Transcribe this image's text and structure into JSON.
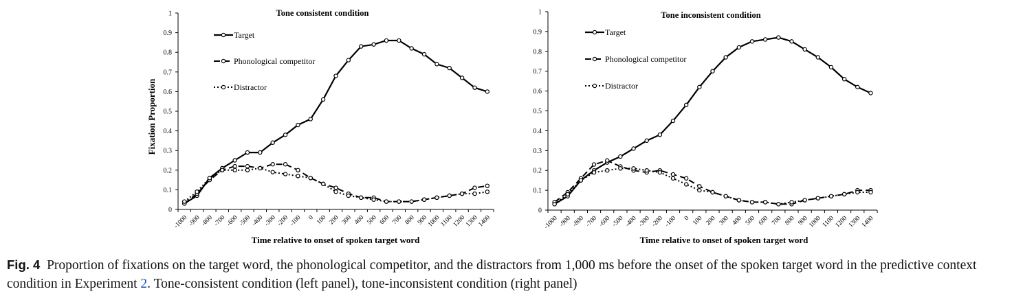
{
  "caption": {
    "label": "Fig. 4",
    "text_before": "Proportion of fixations on the target word, the phonological competitor, and the distractors from 1,000 ms before the onset of the spoken target word in the predictive context condition in Experiment ",
    "link": "2",
    "text_after": ". Tone-consistent condition (left panel), tone-inconsistent condition (right panel)"
  },
  "chart_data": [
    {
      "type": "line",
      "title": "Tone consistent condition",
      "xlabel": "Time relative to onset of spoken target word",
      "ylabel": "Fixation Proportion",
      "ylim": [
        0,
        1
      ],
      "yticks": [
        "0",
        "0.1",
        "0.2",
        "0.3",
        "0.4",
        "0.5",
        "0.6",
        "0.7",
        "0.8",
        "0.9",
        "1"
      ],
      "categories": [
        "-1000",
        "-900",
        "-800",
        "-700",
        "-600",
        "-500",
        "-400",
        "-300",
        "-200",
        "-100",
        "0",
        "100",
        "200",
        "300",
        "400",
        "500",
        "600",
        "700",
        "800",
        "900",
        "1000",
        "1100",
        "1200",
        "1300",
        "1400"
      ],
      "legend_position": "top-left",
      "series": [
        {
          "name": "Target",
          "style": "solid",
          "values": [
            0.03,
            0.07,
            0.16,
            0.21,
            0.25,
            0.29,
            0.29,
            0.34,
            0.38,
            0.43,
            0.46,
            0.56,
            0.68,
            0.76,
            0.83,
            0.84,
            0.86,
            0.86,
            0.82,
            0.79,
            0.74,
            0.72,
            0.67,
            0.62,
            0.6
          ]
        },
        {
          "name": "Phonological competitor",
          "style": "dashed",
          "values": [
            0.03,
            0.08,
            0.15,
            0.2,
            0.22,
            0.22,
            0.21,
            0.23,
            0.23,
            0.2,
            0.16,
            0.13,
            0.11,
            0.08,
            0.06,
            0.06,
            0.04,
            0.04,
            0.04,
            0.05,
            0.06,
            0.07,
            0.08,
            0.11,
            0.12
          ]
        },
        {
          "name": "Distractor",
          "style": "dotted",
          "values": [
            0.04,
            0.09,
            0.16,
            0.2,
            0.2,
            0.2,
            0.21,
            0.19,
            0.18,
            0.17,
            0.16,
            0.13,
            0.09,
            0.07,
            0.06,
            0.05,
            0.04,
            0.04,
            0.04,
            0.05,
            0.06,
            0.07,
            0.08,
            0.08,
            0.09
          ]
        }
      ]
    },
    {
      "type": "line",
      "title": "Tone inconsistent condition",
      "xlabel": "Time relative to onset of spoken target word",
      "ylabel": "",
      "ylim": [
        0,
        1
      ],
      "yticks": [
        "0",
        "0.1",
        "0.2",
        "0.3",
        "0.4",
        "0.5",
        "0.6",
        "0.7",
        "0.8",
        "0.9",
        "1"
      ],
      "categories": [
        "-1000",
        "-900",
        "-800",
        "-700",
        "-600",
        "-500",
        "-400",
        "-300",
        "-200",
        "-100",
        "0",
        "100",
        "200",
        "300",
        "400",
        "500",
        "600",
        "700",
        "800",
        "900",
        "1000",
        "1100",
        "1200",
        "1300",
        "1400"
      ],
      "legend_position": "top-left",
      "series": [
        {
          "name": "Target",
          "style": "solid",
          "values": [
            0.03,
            0.07,
            0.15,
            0.2,
            0.24,
            0.27,
            0.31,
            0.35,
            0.38,
            0.45,
            0.53,
            0.62,
            0.7,
            0.77,
            0.82,
            0.85,
            0.86,
            0.87,
            0.85,
            0.81,
            0.77,
            0.72,
            0.66,
            0.62,
            0.59
          ]
        },
        {
          "name": "Phonological competitor",
          "style": "dashed",
          "values": [
            0.04,
            0.09,
            0.16,
            0.23,
            0.25,
            0.22,
            0.2,
            0.19,
            0.2,
            0.18,
            0.16,
            0.12,
            0.09,
            0.07,
            0.05,
            0.04,
            0.04,
            0.03,
            0.03,
            0.05,
            0.06,
            0.07,
            0.08,
            0.1,
            0.1
          ]
        },
        {
          "name": "Distractor",
          "style": "dotted",
          "values": [
            0.03,
            0.08,
            0.15,
            0.19,
            0.2,
            0.21,
            0.21,
            0.2,
            0.19,
            0.16,
            0.13,
            0.1,
            0.09,
            0.07,
            0.05,
            0.04,
            0.04,
            0.03,
            0.04,
            0.05,
            0.06,
            0.07,
            0.08,
            0.09,
            0.09
          ]
        }
      ]
    }
  ]
}
